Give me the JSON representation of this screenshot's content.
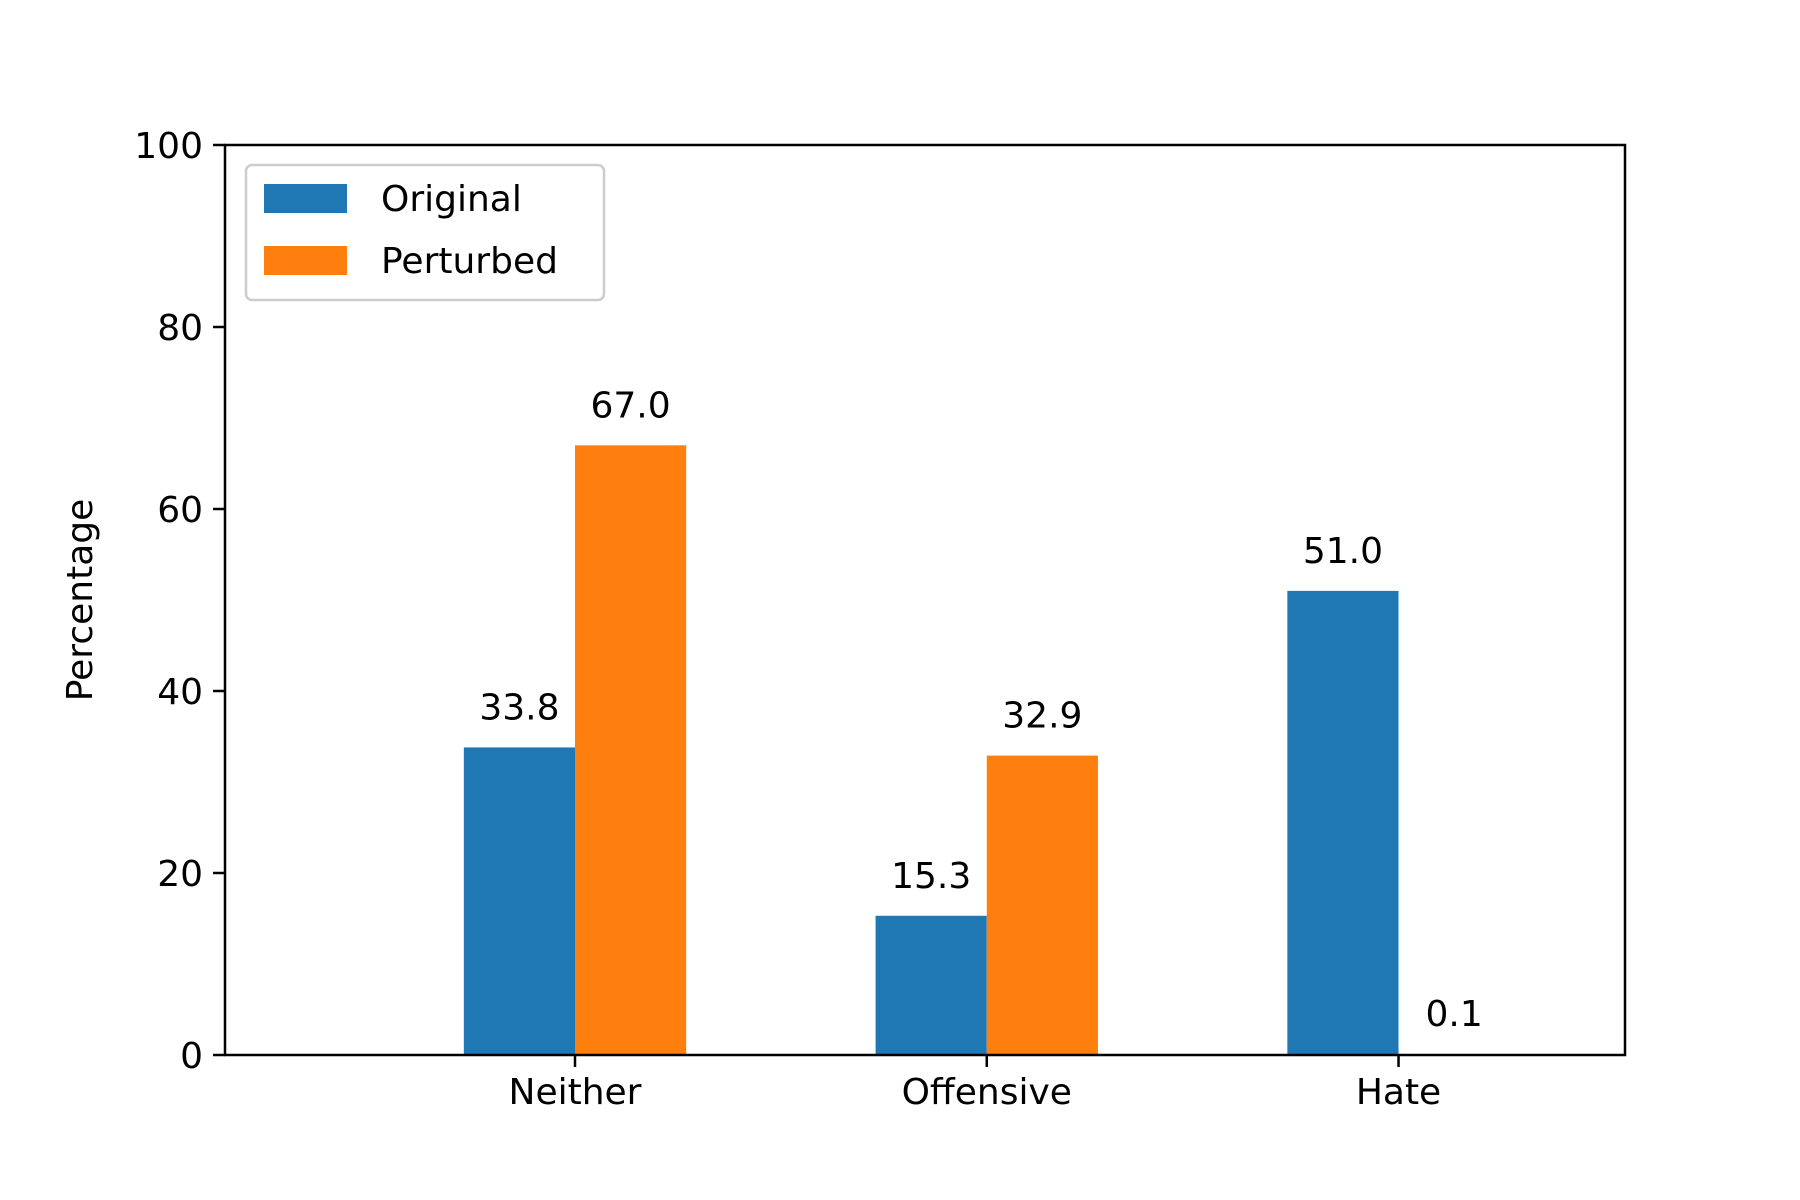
{
  "chart_data": {
    "type": "bar",
    "title": "",
    "xlabel": "",
    "ylabel": "Percentage",
    "ylim": [
      0,
      100
    ],
    "yticks": [
      0,
      20,
      40,
      60,
      80,
      100
    ],
    "categories": [
      "Neither",
      "Offensive",
      "Hate"
    ],
    "series": [
      {
        "name": "Original",
        "color": "#1f77b4",
        "values": [
          33.8,
          15.3,
          51.0
        ],
        "labels": [
          "33.8",
          "15.3",
          "51.0"
        ]
      },
      {
        "name": "Perturbed",
        "color": "#ff7f0e",
        "values": [
          67.0,
          32.9,
          0.1
        ],
        "labels": [
          "67.0",
          "32.9",
          "0.1"
        ]
      }
    ],
    "legend": {
      "position": "upper-left"
    },
    "grid": false
  }
}
